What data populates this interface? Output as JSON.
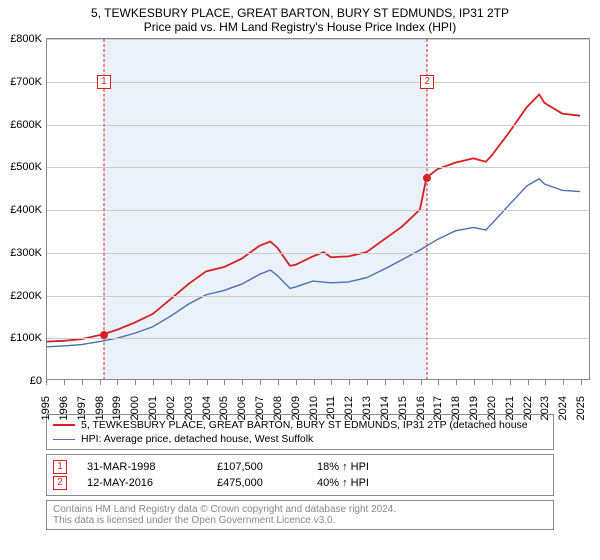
{
  "title": "5, TEWKESBURY PLACE, GREAT BARTON, BURY ST EDMUNDS, IP31 2TP",
  "subtitle": "Price paid vs. HM Land Registry's House Price Index (HPI)",
  "chart": {
    "type": "line",
    "background_color": "#ffffff",
    "shade_color": "#eaf1f9",
    "grid_color": "#cccccc",
    "axis_color": "#888888",
    "text_color": "#000000",
    "ylim": [
      0,
      800000
    ],
    "ytick_step": 100000,
    "yticks": [
      "£0",
      "£100K",
      "£200K",
      "£300K",
      "£400K",
      "£500K",
      "£600K",
      "£700K",
      "£800K"
    ],
    "xlim": [
      1995,
      2025.5
    ],
    "xticks": [
      1995,
      1996,
      1997,
      1998,
      1999,
      2000,
      2001,
      2002,
      2003,
      2004,
      2005,
      2006,
      2007,
      2008,
      2009,
      2010,
      2011,
      2012,
      2013,
      2014,
      2015,
      2016,
      2017,
      2018,
      2019,
      2020,
      2021,
      2022,
      2023,
      2024,
      2025
    ],
    "label_fontsize": 11,
    "shade_x": [
      1998.25,
      2016.37
    ],
    "series": [
      {
        "name": "property",
        "label": "5, TEWKESBURY PLACE, GREAT BARTON, BURY ST EDMUNDS, IP31 2TP (detached house",
        "color": "#d62024",
        "line_width": 1.8,
        "points": [
          [
            1995,
            90000
          ],
          [
            1996,
            92000
          ],
          [
            1997,
            96000
          ],
          [
            1998.25,
            107500
          ],
          [
            1999,
            118000
          ],
          [
            2000,
            135000
          ],
          [
            2001,
            155000
          ],
          [
            2002,
            190000
          ],
          [
            2003,
            225000
          ],
          [
            2004,
            255000
          ],
          [
            2005,
            265000
          ],
          [
            2006,
            285000
          ],
          [
            2007,
            315000
          ],
          [
            2007.6,
            325000
          ],
          [
            2008,
            310000
          ],
          [
            2008.7,
            268000
          ],
          [
            2009,
            270000
          ],
          [
            2010,
            290000
          ],
          [
            2010.6,
            300000
          ],
          [
            2011,
            288000
          ],
          [
            2012,
            290000
          ],
          [
            2013,
            300000
          ],
          [
            2014,
            330000
          ],
          [
            2015,
            360000
          ],
          [
            2016,
            400000
          ],
          [
            2016.37,
            475000
          ],
          [
            2017,
            495000
          ],
          [
            2018,
            510000
          ],
          [
            2019,
            520000
          ],
          [
            2019.7,
            512000
          ],
          [
            2020,
            525000
          ],
          [
            2021,
            580000
          ],
          [
            2022,
            640000
          ],
          [
            2022.7,
            670000
          ],
          [
            2023,
            650000
          ],
          [
            2024,
            625000
          ],
          [
            2025,
            620000
          ]
        ]
      },
      {
        "name": "hpi",
        "label": "HPI: Average price, detached house, West Suffolk",
        "color": "#4a6fb3",
        "line_width": 1.4,
        "points": [
          [
            1995,
            78000
          ],
          [
            1996,
            80000
          ],
          [
            1997,
            83000
          ],
          [
            1998,
            90000
          ],
          [
            1999,
            98000
          ],
          [
            2000,
            110000
          ],
          [
            2001,
            125000
          ],
          [
            2002,
            150000
          ],
          [
            2003,
            178000
          ],
          [
            2004,
            200000
          ],
          [
            2005,
            210000
          ],
          [
            2006,
            225000
          ],
          [
            2007,
            248000
          ],
          [
            2007.6,
            258000
          ],
          [
            2008,
            245000
          ],
          [
            2008.7,
            215000
          ],
          [
            2009,
            218000
          ],
          [
            2010,
            232000
          ],
          [
            2011,
            228000
          ],
          [
            2012,
            230000
          ],
          [
            2013,
            240000
          ],
          [
            2014,
            260000
          ],
          [
            2015,
            282000
          ],
          [
            2016,
            305000
          ],
          [
            2017,
            330000
          ],
          [
            2018,
            350000
          ],
          [
            2019,
            358000
          ],
          [
            2019.7,
            352000
          ],
          [
            2020,
            365000
          ],
          [
            2021,
            410000
          ],
          [
            2022,
            455000
          ],
          [
            2022.7,
            472000
          ],
          [
            2023,
            460000
          ],
          [
            2024,
            445000
          ],
          [
            2025,
            442000
          ]
        ]
      }
    ],
    "markers": [
      {
        "n": "1",
        "x": 1998.25,
        "y": 107500,
        "box_y": 700000,
        "color": "#d62024",
        "date": "31-MAR-1998",
        "price": "£107,500",
        "pct": "18% ↑ HPI"
      },
      {
        "n": "2",
        "x": 2016.37,
        "y": 475000,
        "box_y": 700000,
        "color": "#d62024",
        "date": "12-MAY-2016",
        "price": "£475,000",
        "pct": "40% ↑ HPI"
      }
    ]
  },
  "footer": {
    "line1": "Contains HM Land Registry data © Crown copyright and database right 2024.",
    "line2": "This data is licensed under the Open Government Licence v3.0."
  }
}
